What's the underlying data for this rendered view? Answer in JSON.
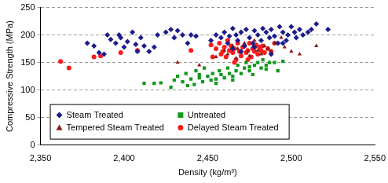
{
  "chart_data": {
    "type": "scatter",
    "x_label": "Density (kg/m³)",
    "y_label": "Compressive Strength (MPa)",
    "xlim": [
      2350,
      2550
    ],
    "xticks": [
      2350,
      2400,
      2450,
      2500,
      2550
    ],
    "ylim": [
      0,
      250
    ],
    "yticks": [
      0,
      50,
      100,
      150,
      200,
      250
    ],
    "grid": true,
    "legend": "lower left",
    "series": [
      {
        "name": "Steam Treated",
        "color": "#1c1c8c",
        "marker": "diamond",
        "x": [
          2378,
          2382,
          2385,
          2388,
          2390,
          2392,
          2395,
          2397,
          2398,
          2400,
          2402,
          2405,
          2407,
          2408,
          2410,
          2412,
          2415,
          2418,
          2420,
          2425,
          2428,
          2430,
          2432,
          2435,
          2438,
          2440,
          2443,
          2452,
          2455,
          2458,
          2460,
          2462,
          2463,
          2465,
          2467,
          2468,
          2470,
          2472,
          2473,
          2475,
          2477,
          2478,
          2480,
          2482,
          2483,
          2485,
          2487,
          2488,
          2490,
          2492,
          2493,
          2495,
          2497,
          2498,
          2500,
          2502,
          2503,
          2505,
          2507,
          2510,
          2512,
          2515,
          2522,
          2470,
          2465,
          2488,
          2495,
          2478
        ],
        "values": [
          185,
          180,
          168,
          165,
          200,
          192,
          185,
          200,
          195,
          178,
          188,
          205,
          183,
          170,
          195,
          180,
          170,
          178,
          200,
          205,
          210,
          195,
          208,
          200,
          185,
          200,
          198,
          190,
          200,
          195,
          205,
          185,
          198,
          212,
          200,
          190,
          205,
          180,
          210,
          195,
          185,
          208,
          200,
          190,
          212,
          205,
          195,
          210,
          198,
          185,
          215,
          205,
          190,
          200,
          215,
          205,
          195,
          210,
          200,
          205,
          210,
          220,
          210,
          170,
          175,
          165,
          185,
          178
        ]
      },
      {
        "name": "Untreated",
        "color": "#11991a",
        "marker": "square",
        "x": [
          2412,
          2418,
          2422,
          2428,
          2430,
          2432,
          2435,
          2437,
          2440,
          2442,
          2443,
          2445,
          2447,
          2448,
          2450,
          2452,
          2453,
          2455,
          2457,
          2458,
          2460,
          2462,
          2463,
          2465,
          2467,
          2468,
          2470,
          2472,
          2473,
          2475,
          2477,
          2478,
          2480,
          2482,
          2483,
          2485,
          2487,
          2490,
          2492,
          2495,
          2438,
          2445,
          2455,
          2465,
          2475,
          2485
        ],
        "values": [
          112,
          112,
          113,
          105,
          118,
          125,
          115,
          130,
          120,
          110,
          135,
          122,
          115,
          140,
          125,
          118,
          130,
          120,
          135,
          128,
          122,
          140,
          130,
          125,
          135,
          145,
          130,
          140,
          150,
          135,
          128,
          145,
          150,
          140,
          155,
          145,
          150,
          150,
          135,
          152,
          108,
          128,
          112,
          118,
          142,
          138
        ]
      },
      {
        "name": "Tempered Steam Treated",
        "color": "#8b1a1a",
        "marker": "triangle",
        "x": [
          2432,
          2445,
          2455,
          2460,
          2462,
          2465,
          2467,
          2468,
          2470,
          2472,
          2474,
          2475,
          2477,
          2478,
          2480,
          2482,
          2484,
          2486,
          2488,
          2490,
          2494,
          2496,
          2500,
          2505,
          2515
        ],
        "values": [
          150,
          145,
          160,
          172,
          165,
          180,
          158,
          175,
          168,
          185,
          170,
          162,
          178,
          190,
          172,
          165,
          180,
          175,
          170,
          185,
          195,
          178,
          170,
          165,
          180
        ]
      },
      {
        "name": "Delayed Steam Treated",
        "color": "#ff1a1a",
        "marker": "circle",
        "x": [
          2362,
          2367,
          2382,
          2386,
          2398,
          2408,
          2440,
          2452,
          2455,
          2457,
          2458,
          2460,
          2461,
          2462,
          2463,
          2464,
          2465,
          2466,
          2467,
          2468,
          2469,
          2470,
          2471,
          2472,
          2473,
          2474,
          2475,
          2476,
          2477,
          2478,
          2479,
          2480,
          2481,
          2482,
          2483,
          2484,
          2486,
          2488,
          2490,
          2453,
          2459,
          2466,
          2474,
          2478
        ],
        "values": [
          152,
          140,
          160,
          162,
          168,
          172,
          172,
          182,
          175,
          185,
          165,
          178,
          160,
          190,
          172,
          180,
          168,
          175,
          155,
          185,
          170,
          162,
          178,
          180,
          168,
          172,
          185,
          160,
          175,
          170,
          182,
          165,
          178,
          172,
          180,
          168,
          175,
          170,
          185,
          160,
          170,
          150,
          155,
          178
        ]
      }
    ]
  }
}
